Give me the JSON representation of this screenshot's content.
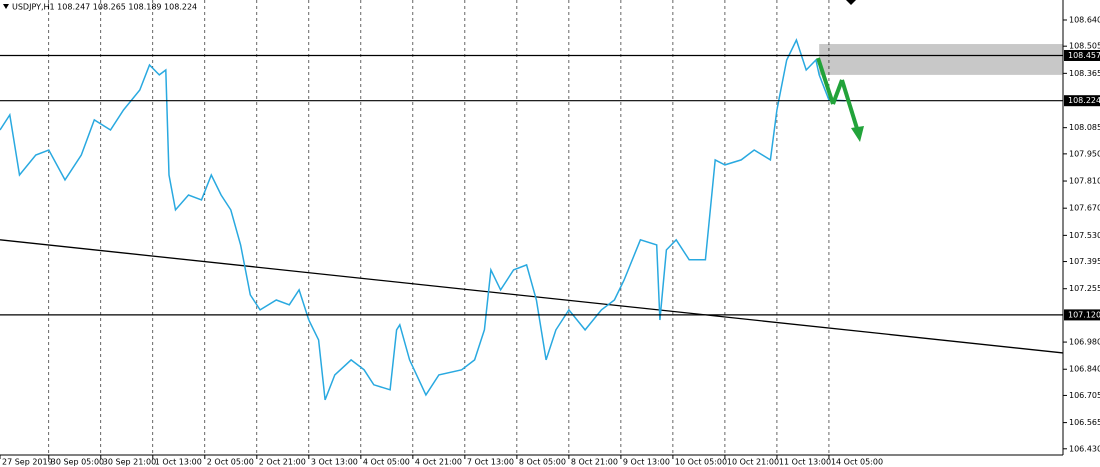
{
  "chart_data": {
    "type": "line",
    "title": "USDJPY,H1  108.247 108.265 108.189 108.224",
    "color": "#29a9e0",
    "x": [
      0,
      3,
      6,
      11,
      15,
      20,
      25,
      29,
      34,
      38,
      43,
      46,
      49,
      51,
      52,
      54,
      58,
      62,
      65,
      68,
      71,
      74,
      77,
      80,
      85,
      89,
      92,
      95,
      98,
      100,
      103,
      108,
      112,
      115,
      120,
      122,
      123,
      126,
      131,
      135,
      142,
      146,
      149,
      151,
      154,
      158,
      162,
      165,
      168,
      171,
      175,
      180,
      185,
      189,
      192,
      197,
      202,
      203,
      205,
      208,
      212,
      217,
      220,
      223,
      228,
      232,
      237,
      239,
      242,
      245,
      248,
      251,
      252,
      255,
      260
    ],
    "values": [
      108.073,
      108.151,
      107.841,
      107.944,
      107.97,
      107.816,
      107.944,
      108.125,
      108.073,
      108.176,
      108.279,
      108.408,
      108.357,
      108.382,
      107.841,
      107.661,
      107.738,
      107.713,
      107.841,
      107.738,
      107.661,
      107.481,
      107.223,
      107.146,
      107.197,
      107.172,
      107.249,
      107.094,
      106.991,
      106.682,
      106.811,
      106.888,
      106.837,
      106.76,
      106.734,
      107.043,
      107.069,
      106.888,
      106.708,
      106.811,
      106.837,
      106.888,
      107.043,
      107.352,
      107.249,
      107.352,
      107.378,
      107.197,
      106.888,
      107.043,
      107.146,
      107.043,
      107.146,
      107.197,
      107.3,
      107.507,
      107.481,
      107.094,
      107.455,
      107.507,
      107.404,
      107.404,
      107.919,
      107.893,
      107.919,
      107.97,
      107.919,
      108.176,
      108.434,
      108.537,
      108.382,
      108.434,
      108.357,
      108.228,
      108.224
    ],
    "xlim": [
      0,
      327
    ],
    "xticks": [
      {
        "value": 0,
        "label": "27 Sep 2019"
      },
      {
        "value": 15,
        "label": "30 Sep 05:00"
      },
      {
        "value": 31,
        "label": "30 Sep 21:00"
      },
      {
        "value": 47,
        "label": "1 Oct 13:00"
      },
      {
        "value": 63,
        "label": "2 Oct 05:00"
      },
      {
        "value": 79,
        "label": "2 Oct 21:00"
      },
      {
        "value": 95,
        "label": "3 Oct 13:00"
      },
      {
        "value": 111,
        "label": "4 Oct 05:00"
      },
      {
        "value": 127,
        "label": "4 Oct 21:00"
      },
      {
        "value": 143,
        "label": "7 Oct 13:00"
      },
      {
        "value": 159,
        "label": "8 Oct 05:00"
      },
      {
        "value": 175,
        "label": "8 Oct 21:00"
      },
      {
        "value": 191,
        "label": "9 Oct 13:00"
      },
      {
        "value": 207,
        "label": "10 Oct 05:00"
      },
      {
        "value": 223,
        "label": "10 Oct 21:00"
      },
      {
        "value": 239,
        "label": "11 Oct 13:00"
      },
      {
        "value": 255,
        "label": "14 Oct 05:00"
      }
    ],
    "ylim": [
      106.398,
      108.743
    ],
    "yticks": [
      {
        "value": 108.64,
        "label": "108.640"
      },
      108.505,
      108.365,
      108.085,
      {
        "value": 107.95,
        "label": "107.950"
      },
      {
        "value": 107.81,
        "label": "107.810"
      },
      {
        "value": 107.67,
        "label": "107.670"
      },
      {
        "value": 107.53,
        "label": "107.530"
      },
      107.395,
      107.255,
      {
        "value": 106.98,
        "label": "106.980"
      },
      {
        "value": 106.84,
        "label": "106.840"
      },
      106.705,
      106.565,
      {
        "value": 106.43,
        "label": "106.430"
      }
    ],
    "hlines": [
      108.457,
      108.224,
      {
        "value": 107.12,
        "label": "107.120"
      }
    ],
    "trendline": {
      "x": [
        0,
        327
      ],
      "y": [
        107.507,
        106.924
      ]
    },
    "zone": {
      "x": [
        252,
        327
      ],
      "y": [
        108.357,
        108.516
      ]
    }
  }
}
